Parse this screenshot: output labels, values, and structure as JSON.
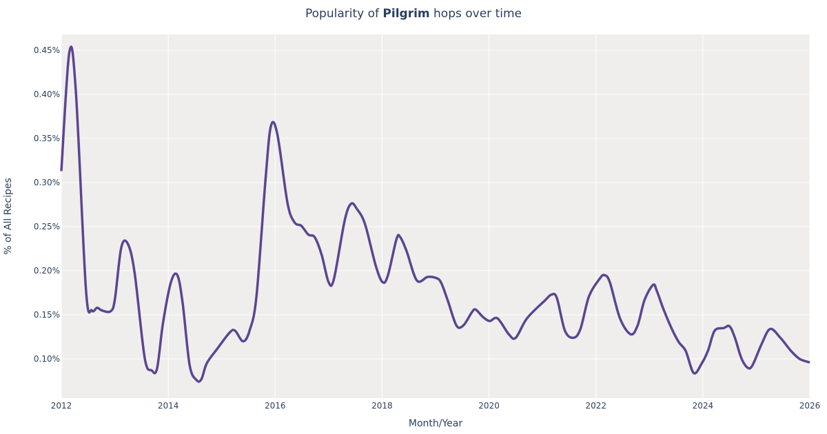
{
  "chart_data": {
    "type": "line",
    "title_prefix": "Popularity of ",
    "title_bold": "Pilgrim",
    "title_suffix": " hops over time",
    "xlabel": "Month/Year",
    "ylabel": "% of All Recipes",
    "xlim": [
      2012,
      2026
    ],
    "ylim": [
      0.0555,
      0.468
    ],
    "grid": true,
    "x_ticks": [
      2012,
      2014,
      2016,
      2018,
      2020,
      2022,
      2024,
      2026
    ],
    "x_tick_labels": [
      "2012",
      "2014",
      "2016",
      "2018",
      "2020",
      "2022",
      "2024",
      "2026"
    ],
    "y_ticks": [
      0.1,
      0.15,
      0.2,
      0.25,
      0.3,
      0.35,
      0.4,
      0.45
    ],
    "y_tick_labels": [
      "0.10%",
      "0.15%",
      "0.20%",
      "0.25%",
      "0.30%",
      "0.35%",
      "0.40%",
      "0.45%"
    ],
    "colors": {
      "line": "#5c4591",
      "plot_bg": "#efeeed",
      "grid": "#ffffff",
      "text": "#2a3f5f"
    },
    "series": [
      {
        "name": "Pilgrim",
        "x": [
          2012.0,
          2012.15,
          2012.27,
          2012.46,
          2012.57,
          2012.67,
          2012.76,
          2012.92,
          2013.0,
          2013.12,
          2013.24,
          2013.37,
          2013.56,
          2013.69,
          2013.79,
          2013.9,
          2014.05,
          2014.17,
          2014.27,
          2014.4,
          2014.53,
          2014.62,
          2014.72,
          2014.91,
          2015.15,
          2015.25,
          2015.4,
          2015.52,
          2015.65,
          2015.82,
          2015.92,
          2016.04,
          2016.23,
          2016.36,
          2016.49,
          2016.62,
          2016.74,
          2016.87,
          2017.0,
          2017.1,
          2017.3,
          2017.42,
          2017.53,
          2017.68,
          2017.88,
          2018.01,
          2018.11,
          2018.27,
          2018.34,
          2018.46,
          2018.65,
          2018.85,
          2019.0,
          2019.1,
          2019.23,
          2019.39,
          2019.52,
          2019.68,
          2019.75,
          2019.88,
          2020.01,
          2020.16,
          2020.37,
          2020.5,
          2020.71,
          2021.04,
          2021.17,
          2021.27,
          2021.42,
          2021.58,
          2021.71,
          2021.87,
          2022.07,
          2022.16,
          2022.26,
          2022.45,
          2022.65,
          2022.78,
          2022.91,
          2023.07,
          2023.14,
          2023.26,
          2023.42,
          2023.55,
          2023.68,
          2023.83,
          2023.98,
          2024.1,
          2024.22,
          2024.39,
          2024.5,
          2024.6,
          2024.72,
          2024.84,
          2024.93,
          2025.1,
          2025.26,
          2025.45,
          2025.65,
          2025.81,
          2026.0
        ],
        "y": [
          0.313,
          0.448,
          0.405,
          0.179,
          0.155,
          0.158,
          0.155,
          0.154,
          0.167,
          0.226,
          0.231,
          0.198,
          0.101,
          0.087,
          0.089,
          0.14,
          0.187,
          0.195,
          0.163,
          0.093,
          0.076,
          0.077,
          0.095,
          0.111,
          0.13,
          0.132,
          0.12,
          0.132,
          0.171,
          0.304,
          0.364,
          0.355,
          0.277,
          0.255,
          0.251,
          0.241,
          0.238,
          0.218,
          0.187,
          0.191,
          0.257,
          0.276,
          0.27,
          0.253,
          0.206,
          0.187,
          0.195,
          0.236,
          0.238,
          0.222,
          0.189,
          0.193,
          0.192,
          0.187,
          0.166,
          0.138,
          0.138,
          0.153,
          0.156,
          0.148,
          0.143,
          0.146,
          0.128,
          0.124,
          0.146,
          0.166,
          0.173,
          0.169,
          0.132,
          0.124,
          0.134,
          0.171,
          0.191,
          0.195,
          0.187,
          0.146,
          0.128,
          0.138,
          0.167,
          0.184,
          0.177,
          0.157,
          0.134,
          0.119,
          0.109,
          0.084,
          0.095,
          0.11,
          0.132,
          0.135,
          0.137,
          0.124,
          0.101,
          0.09,
          0.093,
          0.117,
          0.134,
          0.124,
          0.109,
          0.1,
          0.096
        ]
      }
    ]
  }
}
